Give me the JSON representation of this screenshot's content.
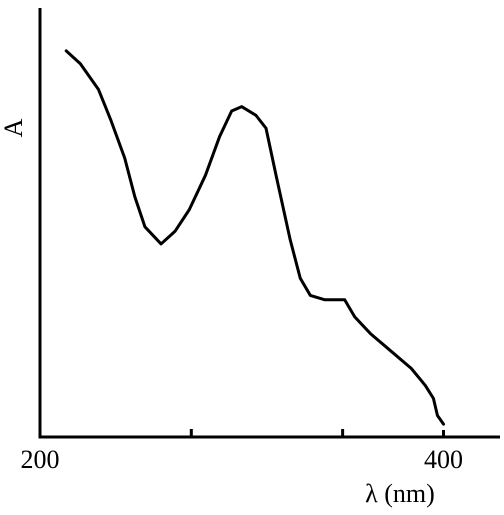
{
  "chart_data": {
    "type": "line",
    "x_label": "λ (nm)",
    "y_label": "A",
    "x": [
      213,
      220,
      229,
      235,
      242,
      247,
      252,
      260,
      267,
      274,
      282,
      289,
      295,
      300,
      307,
      312,
      317,
      324,
      329,
      334,
      341,
      351,
      356,
      364,
      374,
      384,
      391,
      395,
      397,
      400
    ],
    "values": [
      0.9,
      0.87,
      0.81,
      0.74,
      0.65,
      0.56,
      0.49,
      0.45,
      0.48,
      0.53,
      0.61,
      0.7,
      0.76,
      0.77,
      0.75,
      0.72,
      0.61,
      0.46,
      0.37,
      0.33,
      0.32,
      0.32,
      0.28,
      0.24,
      0.2,
      0.16,
      0.12,
      0.09,
      0.05,
      0.03
    ],
    "color": "#000000",
    "xlim": [
      200,
      428
    ],
    "ylim": [
      0,
      1
    ],
    "xticks": [
      200,
      400
    ],
    "minor_xticks": [
      275,
      350
    ]
  }
}
